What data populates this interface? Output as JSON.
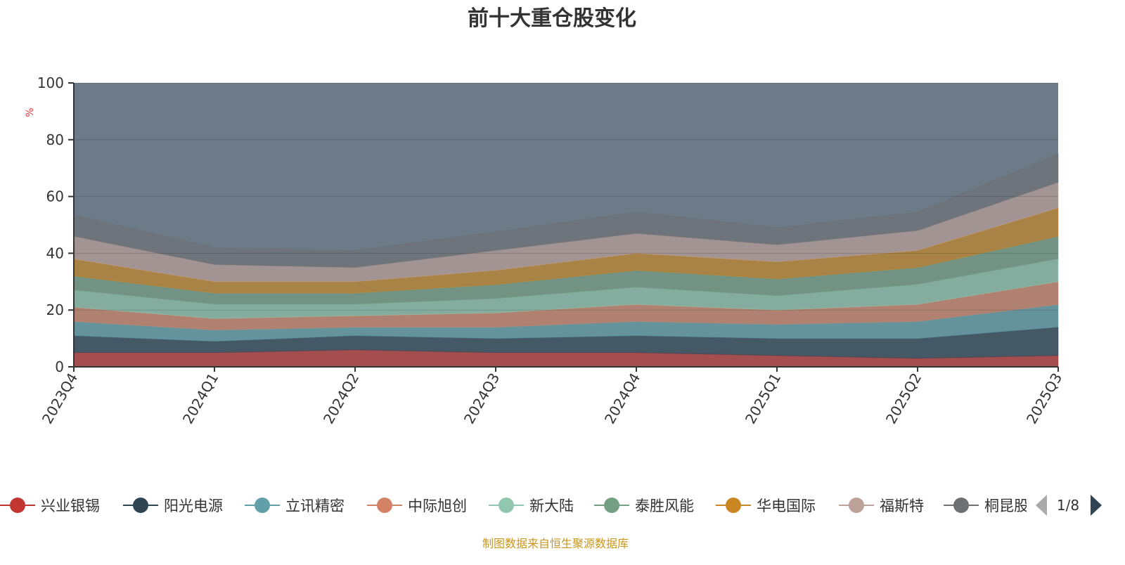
{
  "chart_data": {
    "type": "area",
    "stacked": true,
    "title": "前十大重仓股变化",
    "ylabel": "%",
    "xlabel": "",
    "ylim": [
      0,
      100
    ],
    "yticks": [
      "0",
      "20",
      "40",
      "60",
      "80",
      "100"
    ],
    "categories": [
      "2023Q4",
      "2024Q1",
      "2024Q2",
      "2024Q3",
      "2024Q4",
      "2025Q1",
      "2025Q2",
      "2025Q3"
    ],
    "series": [
      {
        "name": "兴业银锡",
        "color": "#c23531",
        "values": [
          5,
          5,
          6,
          5,
          5,
          4,
          3,
          4
        ]
      },
      {
        "name": "阳光电源",
        "color": "#2f4554",
        "values": [
          6,
          4,
          5,
          5,
          6,
          6,
          7,
          10
        ]
      },
      {
        "name": "立讯精密",
        "color": "#61a0a8",
        "values": [
          5,
          4,
          3,
          4,
          5,
          5,
          6,
          8
        ]
      },
      {
        "name": "中际旭创",
        "color": "#d48265",
        "values": [
          5,
          4,
          4,
          5,
          6,
          5,
          6,
          8
        ]
      },
      {
        "name": "新大陆",
        "color": "#91c7ae",
        "values": [
          6,
          5,
          4,
          5,
          6,
          5,
          7,
          8
        ]
      },
      {
        "name": "泰胜风能",
        "color": "#749f83",
        "values": [
          5,
          4,
          4,
          5,
          6,
          6,
          6,
          8
        ]
      },
      {
        "name": "华电国际",
        "color": "#ca8622",
        "values": [
          6,
          4,
          4,
          5,
          6,
          6,
          6,
          10
        ]
      },
      {
        "name": "福斯特",
        "color": "#bda29a",
        "values": [
          8,
          6,
          5,
          7,
          7,
          6,
          7,
          9
        ]
      },
      {
        "name": "桐昆股份",
        "color": "#6e7074",
        "values": [
          7.5,
          6,
          6,
          6.5,
          7.5,
          6,
          6.5,
          10
        ]
      }
    ],
    "legend_placement": "bottom",
    "grid": true
  },
  "legend": {
    "page": "1/8"
  },
  "footer": "制图数据来自恒生聚源数据库",
  "colors": {
    "remainder": "#6d7b88",
    "footer": "#c8961e",
    "pager_active": "#2f4554",
    "pager_inactive": "#aaaaaa"
  }
}
